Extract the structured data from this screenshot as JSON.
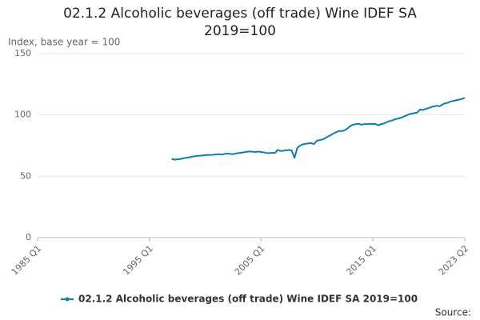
{
  "chart_data": {
    "type": "line",
    "title": "02.1.2 Alcoholic beverages (off trade) Wine IDEF SA 2019=100",
    "y_label": "Index, base year = 100",
    "source": "Source:",
    "categories": [
      "1985 Q1",
      null,
      null,
      null,
      null,
      null,
      null,
      null,
      null,
      null,
      null,
      null,
      null,
      null,
      null,
      null,
      null,
      null,
      null,
      null,
      null,
      null,
      null,
      null,
      null,
      null,
      null,
      null,
      null,
      null,
      null,
      null,
      null,
      null,
      null,
      null,
      null,
      null,
      null,
      null,
      "1995 Q1",
      null,
      null,
      null,
      null,
      null,
      null,
      null,
      null,
      null,
      null,
      null,
      null,
      null,
      null,
      null,
      null,
      null,
      null,
      null,
      null,
      null,
      null,
      null,
      null,
      null,
      null,
      null,
      null,
      null,
      null,
      null,
      null,
      null,
      null,
      null,
      null,
      null,
      null,
      null,
      "2005 Q1",
      null,
      null,
      null,
      null,
      null,
      null,
      null,
      null,
      null,
      null,
      null,
      null,
      null,
      null,
      null,
      null,
      null,
      null,
      null,
      null,
      null,
      null,
      null,
      null,
      null,
      null,
      null,
      null,
      null,
      null,
      null,
      null,
      null,
      null,
      null,
      null,
      null,
      null,
      null,
      "2015 Q1",
      null,
      null,
      null,
      null,
      null,
      null,
      null,
      null,
      null,
      null,
      null,
      null,
      null,
      null,
      null,
      null,
      null,
      null,
      null,
      null,
      null,
      null,
      null,
      null,
      null,
      null,
      null,
      null,
      null,
      null,
      null,
      null,
      "2023 Q2"
    ],
    "series": [
      {
        "name": "02.1.2 Alcoholic beverages (off trade) Wine IDEF SA 2019=100",
        "color": "#0f7db3",
        "values": [
          null,
          null,
          null,
          null,
          null,
          null,
          null,
          null,
          null,
          null,
          null,
          null,
          null,
          null,
          null,
          null,
          null,
          null,
          null,
          null,
          null,
          null,
          null,
          null,
          null,
          null,
          null,
          null,
          null,
          null,
          null,
          null,
          null,
          null,
          null,
          null,
          null,
          null,
          null,
          null,
          null,
          null,
          null,
          null,
          null,
          null,
          null,
          null,
          64.2,
          63.5,
          63.8,
          64.0,
          64.5,
          65.0,
          65.3,
          65.8,
          66.2,
          66.5,
          66.8,
          66.9,
          67.2,
          67.5,
          67.3,
          67.6,
          67.8,
          68.0,
          67.7,
          68.2,
          68.5,
          68.2,
          68.0,
          68.6,
          68.9,
          69.2,
          69.6,
          70.0,
          70.2,
          70.0,
          69.8,
          70.1,
          69.8,
          69.5,
          69.0,
          68.8,
          69.2,
          68.9,
          71.5,
          70.6,
          70.8,
          71.2,
          71.5,
          71.0,
          65.0,
          73.0,
          75.0,
          76.0,
          76.5,
          76.8,
          77.0,
          76.2,
          79.0,
          79.5,
          80.0,
          81.0,
          82.5,
          83.5,
          85.0,
          86.0,
          87.0,
          86.8,
          87.5,
          89.0,
          91.0,
          92.0,
          92.5,
          92.8,
          92.0,
          92.5,
          92.6,
          92.8,
          92.5,
          92.7,
          91.5,
          92.5,
          93.0,
          94.0,
          95.0,
          95.5,
          96.5,
          97.0,
          97.5,
          98.5,
          99.5,
          100.5,
          101.0,
          101.5,
          102.0,
          104.5,
          104.0,
          105.0,
          105.5,
          106.5,
          107.0,
          107.5,
          107.0,
          108.5,
          109.5,
          110.0,
          111.0,
          111.5,
          112.0,
          112.5,
          113.0,
          114.0
        ]
      }
    ],
    "ylim": [
      0,
      150
    ],
    "yticks": [
      0,
      50,
      100,
      150
    ],
    "grid": true
  }
}
